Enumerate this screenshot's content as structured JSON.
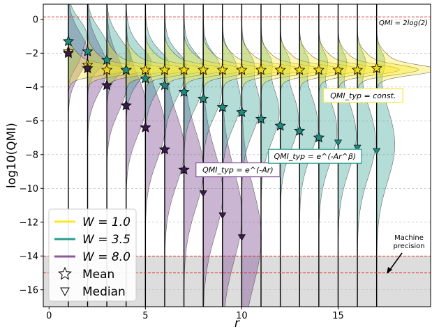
{
  "chart_data": {
    "type": "violin",
    "xlabel": "r",
    "ylabel": "log10(QMI)",
    "xlim": [
      -0.3,
      19.8
    ],
    "ylim": [
      -17.0,
      0.9
    ],
    "x_ticks": [
      0,
      5,
      10,
      15
    ],
    "y_ticks": [
      0,
      -2,
      -4,
      -6,
      -8,
      -10,
      -12,
      -14,
      -16
    ],
    "grid": "horizontal dashed",
    "legend_position": "lower-left",
    "reference_lines": [
      {
        "y": 0.15,
        "label": "QMI = 2log(2)",
        "color": "#e41a1c"
      },
      {
        "y": -14.0,
        "label": "",
        "color": "#e41a1c"
      },
      {
        "y": -15.0,
        "label": "",
        "color": "#e41a1c"
      }
    ],
    "shaded_region": {
      "from": -17.0,
      "to": -14.0,
      "color": "#dddddd"
    },
    "machine_precision_label": [
      "Machine",
      "precision"
    ],
    "series": [
      {
        "name": "W = 1.0",
        "color": "#fde725",
        "mean_color": "#f2d51a",
        "r": [
          1,
          2,
          3,
          4,
          5,
          6,
          7,
          8,
          9,
          10,
          11,
          12,
          13,
          14,
          15,
          16,
          17
        ],
        "mean": [
          -1.9,
          -2.7,
          -3.0,
          -3.0,
          -3.0,
          -3.0,
          -3.0,
          -3.0,
          -3.0,
          -3.0,
          -3.0,
          -3.0,
          -3.0,
          -3.0,
          -3.0,
          -3.0,
          -2.9
        ],
        "median": [
          null,
          null,
          null,
          null,
          null,
          null,
          null,
          null,
          null,
          null,
          null,
          null,
          null,
          null,
          null,
          null,
          null
        ]
      },
      {
        "name": "W = 3.5",
        "color": "#2a9d8f",
        "mean_color": "#1f8a80",
        "r": [
          1,
          2,
          3,
          4,
          5,
          6,
          7,
          8,
          9,
          10,
          11,
          12,
          13,
          14,
          15,
          16,
          17
        ],
        "mean": [
          -1.3,
          -1.9,
          -2.4,
          -3.0,
          -3.5,
          -3.9,
          -4.3,
          -4.7,
          -5.2,
          -5.5,
          -5.9,
          -6.3,
          -6.6,
          -7.0,
          null,
          null,
          null
        ],
        "median": [
          null,
          null,
          null,
          null,
          null,
          null,
          null,
          null,
          null,
          null,
          null,
          null,
          null,
          null,
          -7.3,
          -7.6,
          -7.8
        ]
      },
      {
        "name": "W = 8.0",
        "color": "#8a5a9e",
        "mean_color": "#3b1a4a",
        "r": [
          1,
          2,
          3,
          4,
          5,
          6,
          7,
          8,
          9,
          10
        ],
        "mean": [
          -2.0,
          -2.9,
          -3.9,
          -5.1,
          -6.4,
          -7.7,
          -8.9,
          null,
          null,
          null
        ],
        "median": [
          null,
          null,
          null,
          null,
          null,
          null,
          null,
          -10.3,
          -11.6,
          -12.9
        ]
      }
    ],
    "annotations": [
      {
        "text": "QMI_typ = const.",
        "x": 16.3,
        "y": -4.5,
        "border": "#fde725"
      },
      {
        "text": "QMI_typ = e^(-Ar)",
        "x": 9.8,
        "y": -8.9,
        "border": "#8a5a9e"
      },
      {
        "text": "QMI_typ = e^(-Ar^β)",
        "x": 13.8,
        "y": -8.1,
        "border": "#2a9d8f"
      }
    ],
    "legend": [
      {
        "label": "W = 1.0",
        "symbol": "line",
        "color": "#fde725"
      },
      {
        "label": "W = 3.5",
        "symbol": "line",
        "color": "#2a9d8f"
      },
      {
        "label": "W = 8.0",
        "symbol": "line",
        "color": "#8a5a9e"
      },
      {
        "label": "Mean",
        "symbol": "star",
        "color": "#ffffff"
      },
      {
        "label": "Median",
        "symbol": "triangle",
        "color": "#ffffff"
      }
    ]
  }
}
